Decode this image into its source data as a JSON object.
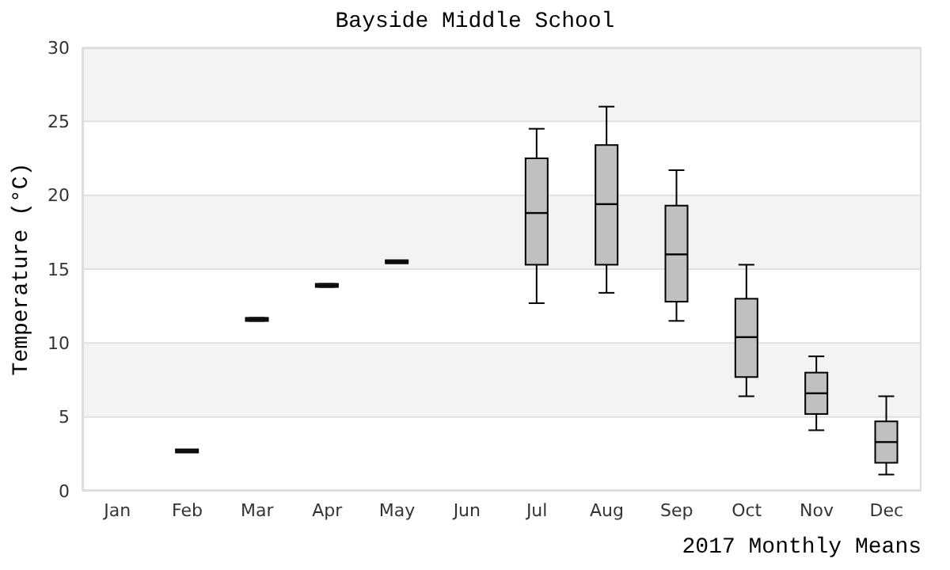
{
  "chart_data": {
    "type": "box",
    "title": "Bayside Middle School",
    "xlabel": "2017 Monthly Means",
    "ylabel": "Temperature (°C)",
    "categories": [
      "Jan",
      "Feb",
      "Mar",
      "Apr",
      "May",
      "Jun",
      "Jul",
      "Aug",
      "Sep",
      "Oct",
      "Nov",
      "Dec"
    ],
    "boxes": [
      null,
      {
        "low": 2.7,
        "q1": 2.7,
        "median": 2.7,
        "q3": 2.7,
        "high": 2.7
      },
      {
        "low": 11.5,
        "q1": 11.5,
        "median": 11.6,
        "q3": 11.7,
        "high": 11.7
      },
      {
        "low": 13.8,
        "q1": 13.8,
        "median": 13.9,
        "q3": 14.0,
        "high": 14.0
      },
      {
        "low": 15.5,
        "q1": 15.5,
        "median": 15.5,
        "q3": 15.5,
        "high": 15.5
      },
      null,
      {
        "low": 12.7,
        "q1": 15.3,
        "median": 18.8,
        "q3": 22.5,
        "high": 24.5
      },
      {
        "low": 13.4,
        "q1": 15.3,
        "median": 19.4,
        "q3": 23.4,
        "high": 26.0
      },
      {
        "low": 11.5,
        "q1": 12.8,
        "median": 16.0,
        "q3": 19.3,
        "high": 21.7
      },
      {
        "low": 6.4,
        "q1": 7.7,
        "median": 10.4,
        "q3": 13.0,
        "high": 15.3
      },
      {
        "low": 4.1,
        "q1": 5.2,
        "median": 6.6,
        "q3": 8.0,
        "high": 9.1
      },
      {
        "low": 1.1,
        "q1": 1.9,
        "median": 3.3,
        "q3": 4.7,
        "high": 6.4
      }
    ],
    "color": "#c0c0c0",
    "ylim": [
      0,
      30
    ],
    "yticks": [
      0,
      5,
      10,
      15,
      20,
      25,
      30
    ],
    "grid": "y"
  }
}
